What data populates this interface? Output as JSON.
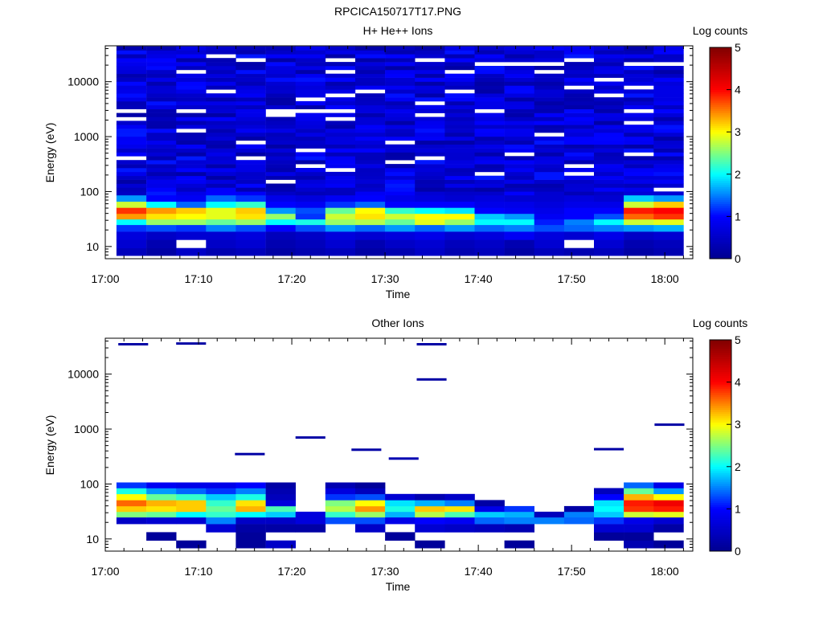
{
  "figure": {
    "title": "RPCICA150717T17.PNG"
  },
  "colormap": {
    "stops": [
      "#00008f",
      "#0000ff",
      "#00ffff",
      "#ffff00",
      "#ff0000",
      "#800000"
    ],
    "min": 0,
    "max": 5
  },
  "chart_data": [
    {
      "type": "heatmap",
      "title": "H+ He++ Ions",
      "xlabel": "Time",
      "ylabel": "Energy (eV)",
      "x_ticks": [
        "17:00",
        "17:10",
        "17:20",
        "17:30",
        "17:40",
        "17:50",
        "18:00"
      ],
      "y_ticks": [
        "10",
        "100",
        "1000",
        "10000"
      ],
      "y_scale": "log",
      "ylim": [
        6,
        45000
      ],
      "xlim_minutes": [
        0,
        63
      ],
      "time_bins_start_minutes": [
        1.2,
        4.4,
        7.6,
        10.8,
        14,
        17.2,
        20.4,
        23.6,
        26.8,
        30,
        33.2,
        36.4,
        39.6,
        42.8,
        46,
        49.2,
        52.4,
        55.6,
        58.8
      ],
      "bin_width_minutes": 3.2,
      "colorbar": {
        "label": "Log counts",
        "ticks": [
          "0",
          "1",
          "2",
          "3",
          "4",
          "5"
        ],
        "range": [
          0,
          5
        ]
      },
      "low_energy_profile_log_counts": [
        {
          "energy_eV": 8,
          "values": [
            0.4,
            0.2,
            0.5,
            0.3,
            0.4,
            0.2,
            0.3,
            0.4,
            0.2,
            0.3,
            0.5,
            0.3,
            0.4,
            0.2,
            0.4,
            0.3,
            0.4,
            0.2,
            0.3
          ]
        },
        {
          "energy_eV": 11,
          "values": [
            0.6,
            0.3,
            null,
            0.5,
            0.6,
            0.3,
            0.4,
            0.6,
            0.3,
            0.5,
            0.6,
            0.4,
            0.5,
            0.3,
            0.6,
            null,
            0.6,
            0.3,
            0.4
          ]
        },
        {
          "energy_eV": 16,
          "values": [
            0.7,
            0.5,
            0.6,
            0.6,
            0.7,
            0.4,
            0.5,
            0.7,
            0.6,
            0.7,
            0.8,
            0.6,
            0.7,
            0.9,
            0.7,
            0.6,
            0.8,
            0.5,
            0.6
          ]
        },
        {
          "energy_eV": 22,
          "values": [
            1.2,
            1.3,
            1.2,
            1.5,
            1.3,
            1.0,
            1.3,
            1.6,
            1.4,
            1.6,
            1.4,
            1.6,
            1.4,
            1.5,
            1.3,
            1.4,
            1.5,
            1.6,
            1.7
          ]
        },
        {
          "energy_eV": 28,
          "values": [
            2.0,
            2.6,
            2.6,
            2.4,
            2.6,
            2.0,
            2.1,
            2.6,
            2.7,
            2.4,
            2.9,
            2.6,
            2.0,
            2.0,
            1.1,
            1.5,
            2.0,
            2.8,
            2.9
          ]
        },
        {
          "energy_eV": 35,
          "values": [
            3.4,
            3.1,
            3.0,
            2.9,
            3.1,
            2.6,
            1.2,
            2.8,
            3.1,
            2.8,
            3.0,
            3.0,
            1.8,
            1.6,
            0.9,
            1.0,
            1.3,
            3.6,
            3.8
          ]
        },
        {
          "energy_eV": 45,
          "values": [
            3.8,
            3.4,
            3.2,
            2.9,
            3.2,
            1.6,
            1.3,
            2.4,
            3.0,
            2.2,
            2.0,
            1.9,
            1.0,
            0.9,
            0.8,
            1.0,
            1.0,
            3.9,
            4.0
          ]
        },
        {
          "energy_eV": 58,
          "values": [
            2.8,
            2.0,
            1.4,
            2.0,
            2.2,
            1.0,
            0.9,
            1.2,
            1.4,
            1.0,
            1.0,
            1.0,
            0.8,
            0.8,
            0.7,
            0.8,
            0.8,
            2.8,
            3.2
          ]
        },
        {
          "energy_eV": 75,
          "values": [
            1.6,
            1.0,
            0.9,
            1.4,
            1.2,
            0.8,
            0.7,
            0.9,
            1.0,
            0.8,
            0.7,
            0.6,
            0.7,
            0.6,
            0.6,
            0.7,
            0.6,
            1.8,
            1.6
          ]
        }
      ],
      "high_energy_background_log_counts_range": [
        0.2,
        1.1
      ]
    },
    {
      "type": "heatmap",
      "title": "Other Ions",
      "xlabel": "Time",
      "ylabel": "Energy (eV)",
      "x_ticks": [
        "17:00",
        "17:10",
        "17:20",
        "17:30",
        "17:40",
        "17:50",
        "18:00"
      ],
      "y_ticks": [
        "10",
        "100",
        "1000",
        "10000"
      ],
      "y_scale": "log",
      "ylim": [
        6,
        45000
      ],
      "xlim_minutes": [
        0,
        63
      ],
      "time_bins_start_minutes": [
        1.2,
        4.4,
        7.6,
        10.8,
        14,
        17.2,
        20.4,
        23.6,
        26.8,
        30,
        33.2,
        36.4,
        39.6,
        42.8,
        46,
        49.2,
        52.4,
        55.6,
        58.8
      ],
      "bin_width_minutes": 3.2,
      "colorbar": {
        "label": "Log counts",
        "ticks": [
          "0",
          "1",
          "2",
          "3",
          "4",
          "5"
        ],
        "range": [
          0,
          5
        ]
      },
      "profile_log_counts": [
        {
          "energy_eV": 8,
          "values": [
            null,
            null,
            0.1,
            null,
            0.1,
            0.5,
            null,
            null,
            null,
            null,
            0.1,
            null,
            null,
            0.1,
            null,
            null,
            null,
            0.3,
            0.1
          ]
        },
        {
          "energy_eV": 11,
          "values": [
            null,
            0.1,
            null,
            null,
            0.1,
            null,
            null,
            null,
            null,
            0.1,
            null,
            null,
            null,
            null,
            null,
            null,
            0.1,
            0.1,
            null
          ]
        },
        {
          "energy_eV": 16,
          "values": [
            null,
            null,
            null,
            0.6,
            0.2,
            0.2,
            0.2,
            null,
            0.5,
            null,
            0.6,
            0.5,
            0.4,
            0.3,
            null,
            null,
            0.6,
            0.6,
            0.2
          ]
        },
        {
          "energy_eV": 22,
          "values": [
            0.5,
            0.6,
            0.6,
            1.5,
            0.5,
            0.5,
            0.7,
            1.3,
            1.3,
            0.8,
            1.0,
            0.9,
            1.4,
            1.5,
            1.5,
            1.4,
            1.2,
            0.8,
            0.6
          ]
        },
        {
          "energy_eV": 28,
          "values": [
            2.5,
            2.4,
            2.0,
            2.2,
            2.0,
            1.8,
            0.7,
            2.2,
            2.6,
            1.7,
            2.7,
            2.3,
            1.8,
            1.7,
            0.4,
            1.5,
            1.8,
            2.8,
            2.9
          ]
        },
        {
          "energy_eV": 35,
          "values": [
            3.2,
            3.1,
            3.2,
            2.4,
            3.3,
            2.3,
            null,
            2.7,
            3.4,
            2.1,
            3.2,
            3.1,
            0.8,
            1.2,
            null,
            0.2,
            2.0,
            3.8,
            3.9
          ]
        },
        {
          "energy_eV": 45,
          "values": [
            3.6,
            3.3,
            3.2,
            2.2,
            3.1,
            0.7,
            null,
            2.5,
            3.0,
            1.9,
            1.7,
            1.5,
            0.2,
            null,
            null,
            null,
            1.9,
            3.9,
            4.1
          ]
        },
        {
          "energy_eV": 58,
          "values": [
            3.0,
            2.4,
            2.2,
            1.8,
            2.1,
            0.4,
            null,
            1.2,
            1.3,
            0.6,
            0.3,
            0.5,
            null,
            null,
            null,
            null,
            1.0,
            3.3,
            3.0
          ]
        },
        {
          "energy_eV": 75,
          "values": [
            2.1,
            1.6,
            1.4,
            1.2,
            1.5,
            0.3,
            null,
            0.7,
            0.4,
            null,
            null,
            null,
            null,
            null,
            null,
            null,
            0.4,
            2.4,
            1.6
          ]
        },
        {
          "energy_eV": 95,
          "values": [
            1.2,
            0.9,
            0.8,
            0.8,
            1.0,
            0.2,
            null,
            0.3,
            0.1,
            null,
            null,
            null,
            null,
            null,
            null,
            null,
            null,
            1.4,
            0.8
          ]
        }
      ],
      "isolated_high_energy_counts": [
        {
          "time_minutes": 3.0,
          "energy_eV": 35000,
          "log_count": 0.2
        },
        {
          "time_minutes": 9.2,
          "energy_eV": 36000,
          "log_count": 0.2
        },
        {
          "time_minutes": 35.0,
          "energy_eV": 35000,
          "log_count": 0.2
        },
        {
          "time_minutes": 35.0,
          "energy_eV": 8000,
          "log_count": 0.2
        },
        {
          "time_minutes": 22.0,
          "energy_eV": 700,
          "log_count": 0.2
        },
        {
          "time_minutes": 28.0,
          "energy_eV": 420,
          "log_count": 0.2
        },
        {
          "time_minutes": 15.5,
          "energy_eV": 350,
          "log_count": 0.2
        },
        {
          "time_minutes": 54.0,
          "energy_eV": 430,
          "log_count": 0.2
        },
        {
          "time_minutes": 60.5,
          "energy_eV": 1200,
          "log_count": 0.2
        },
        {
          "time_minutes": 32.0,
          "energy_eV": 290,
          "log_count": 0.3
        }
      ]
    }
  ]
}
